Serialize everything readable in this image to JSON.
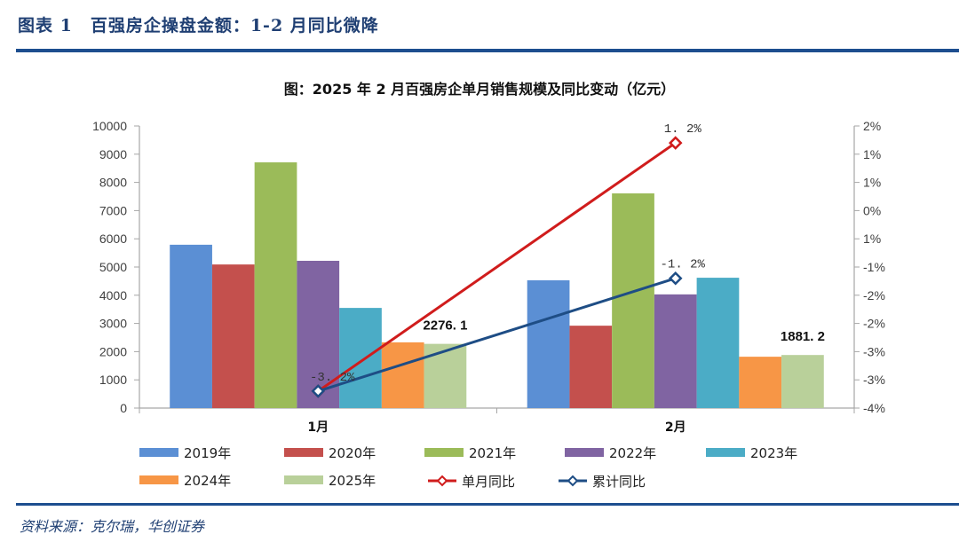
{
  "header": {
    "figure_title": "图表 1　百强房企操盘金额：1-2 月同比微降"
  },
  "footer": {
    "source": "资料来源：克尔瑞，华创证券"
  },
  "chart_data": {
    "type": "bar",
    "title": "图：2025 年 2 月百强房企单月销售规模及同比变动（亿元）",
    "categories": [
      "1月",
      "2月"
    ],
    "series": [
      {
        "name": "2019年",
        "color": "#5b8fd4",
        "values": [
          5790,
          4530
        ]
      },
      {
        "name": "2020年",
        "color": "#c4504d",
        "values": [
          5090,
          2920
        ]
      },
      {
        "name": "2021年",
        "color": "#9bbb59",
        "values": [
          8710,
          7610
        ]
      },
      {
        "name": "2022年",
        "color": "#8064a2",
        "values": [
          5220,
          4030
        ]
      },
      {
        "name": "2023年",
        "color": "#4bacc6",
        "values": [
          3550,
          4620
        ]
      },
      {
        "name": "2024年",
        "color": "#f79646",
        "values": [
          2330,
          1820
        ]
      },
      {
        "name": "2025年",
        "color": "#b9d09a",
        "values": [
          2276.1,
          1881.2
        ]
      }
    ],
    "bar_data_labels": {
      "2025年": [
        "2276. 1",
        "1881. 2"
      ]
    },
    "lines": [
      {
        "name": "单月同比",
        "color": "#d01c1c",
        "axis": "right",
        "values": [
          -3.2,
          1.2
        ],
        "labels": [
          "",
          "1. 2%"
        ]
      },
      {
        "name": "累计同比",
        "color": "#1e4d85",
        "axis": "right",
        "values": [
          -3.2,
          -1.2
        ],
        "labels": [
          "-3. 2%",
          "-1. 2%"
        ]
      }
    ],
    "ylabel": "",
    "xlabel": "",
    "ylim": [
      0,
      10000
    ],
    "yticks": [
      "0",
      "1000",
      "2000",
      "3000",
      "4000",
      "5000",
      "6000",
      "7000",
      "8000",
      "9000",
      "10000"
    ],
    "y2lim": [
      -3.5,
      1.5
    ],
    "y2ticks": [
      "-4%",
      "-3%",
      "-3%",
      "-2%",
      "-2%",
      "-1%",
      "1%",
      "0%",
      "1%",
      "1%",
      "2%"
    ],
    "legend_position": "bottom",
    "grid": false
  }
}
